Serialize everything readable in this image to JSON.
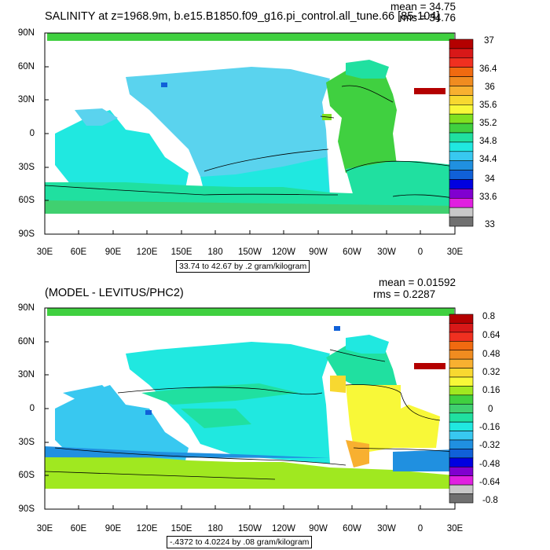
{
  "panel1": {
    "title": "SALINITY at z=1968.9m, b.e15.B1850.f09_g16.pi_control.all_tune.66 [85-104]",
    "stats": {
      "mean": "mean = 34.75",
      "rms": "rms = 34.76"
    },
    "contour_info": "33.74 to 42.67 by .2 gram/kilogram",
    "lat_labels": [
      "90N",
      "60N",
      "30N",
      "0",
      "30S",
      "60S",
      "90S"
    ],
    "lon_labels": [
      "30E",
      "60E",
      "90E",
      "120E",
      "150E",
      "180",
      "150W",
      "120W",
      "90W",
      "60W",
      "30W",
      "0",
      "30E"
    ],
    "colorbar": {
      "colors": [
        "#b40000",
        "#d81818",
        "#f03020",
        "#f06a10",
        "#f08c20",
        "#f8b030",
        "#f8d830",
        "#f8f838",
        "#80e020",
        "#40d040",
        "#20e0a0",
        "#20e8e0",
        "#38c8f0",
        "#2090e0",
        "#1060d8",
        "#0000e0",
        "#8000d0",
        "#e020e0",
        "#c8c8c8",
        "#707070"
      ],
      "labels": [
        "37",
        "36.4",
        "36",
        "35.6",
        "35.2",
        "34.8",
        "34.4",
        "34",
        "33.6",
        "33"
      ]
    }
  },
  "panel2": {
    "title": "(MODEL - LEVITUS/PHC2)",
    "stats": {
      "mean": "mean = 0.01592",
      "rms": "rms = 0.2287"
    },
    "contour_info": "-.4372 to 4.0224 by .08 gram/kilogram",
    "lat_labels": [
      "90N",
      "60N",
      "30N",
      "0",
      "30S",
      "60S",
      "90S"
    ],
    "lon_labels": [
      "30E",
      "60E",
      "90E",
      "120E",
      "150E",
      "180",
      "150W",
      "120W",
      "90W",
      "60W",
      "30W",
      "0",
      "30E"
    ],
    "colorbar": {
      "colors": [
        "#b40000",
        "#d81818",
        "#f03020",
        "#f06a10",
        "#f08c20",
        "#f8b030",
        "#f8d830",
        "#f8f838",
        "#a0e820",
        "#40d040",
        "#40d070",
        "#20e0a0",
        "#20e8e0",
        "#38c8f0",
        "#2090e0",
        "#1060d8",
        "#0000e0",
        "#8000d0",
        "#e020e0",
        "#c8c8c8",
        "#707070"
      ],
      "labels": [
        "0.8",
        "0.64",
        "0.48",
        "0.32",
        "0.16",
        "0",
        "-0.16",
        "-0.32",
        "-0.48",
        "-0.64",
        "-0.8"
      ]
    }
  }
}
